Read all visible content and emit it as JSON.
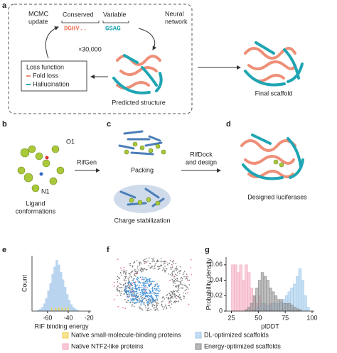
{
  "panel_a": {
    "letter": "a",
    "mcmc_update": [
      "MCMC",
      "update"
    ],
    "conserved": "Conserved",
    "variable": "Variable",
    "seq_conserved": "DGHV..",
    "seq_variable": "GSAG",
    "neural_network": [
      "Neural",
      "network"
    ],
    "iterations": "×30,000",
    "loss_title": "Loss function",
    "loss_items": [
      "Fold loss",
      "Hallucination"
    ],
    "predicted": "Predicted structure",
    "final": "Final scaffold"
  },
  "panel_b": {
    "letter": "b",
    "o1": "O1",
    "n1": "N1",
    "ligand": [
      "Ligand",
      "conformations"
    ],
    "rifgen": "RifGen"
  },
  "panel_c": {
    "letter": "c",
    "packing": "Packing",
    "charge": "Charge stabilization"
  },
  "panel_d": {
    "letter": "d",
    "rifdock": [
      "RifDock",
      "and design"
    ],
    "designed": "Designed luciferases"
  },
  "panel_f": {
    "letter": "f"
  },
  "chart_data": [
    {
      "type": "histogram",
      "letter": "e",
      "xlabel": "RIF binding energy",
      "ylabel": "Count",
      "color": "#b9d4ee",
      "bins": [
        -70,
        -68,
        -66,
        -64,
        -62,
        -60,
        -58,
        -56,
        -54,
        -52,
        -50,
        -48,
        -46,
        -44,
        -42,
        -40,
        -38,
        -36,
        -34,
        -32,
        -30
      ],
      "values": [
        1,
        2,
        4,
        8,
        14,
        22,
        30,
        40,
        48,
        55,
        50,
        42,
        34,
        26,
        18,
        12,
        7,
        4,
        2,
        1
      ],
      "xlim": [
        -75,
        -18
      ],
      "ylim": [
        0,
        60
      ],
      "xticks": [
        -60,
        -40,
        -20
      ],
      "markers": {
        "name": "Native small-molecule-binding proteins",
        "color": "#f2d04a",
        "x": [
          -56,
          -52,
          -49,
          -46,
          -43,
          -40
        ]
      }
    },
    {
      "type": "histogram",
      "letter": "g",
      "xlabel": "plDDT",
      "ylabel": "Probability density",
      "bins": [
        25,
        27.5,
        30,
        32.5,
        35,
        37.5,
        40,
        42.5,
        45,
        47.5,
        50,
        52.5,
        55,
        57.5,
        60,
        62.5,
        65,
        67.5,
        70,
        72.5,
        75,
        77.5,
        80,
        82.5,
        85,
        87.5,
        90,
        92.5,
        95,
        97.5,
        100
      ],
      "xlim": [
        20,
        102
      ],
      "ylim": [
        0,
        0.07
      ],
      "xticks": [
        25,
        50,
        75,
        100
      ],
      "yticks": [
        0,
        0.02,
        0.04,
        0.06
      ],
      "series": [
        {
          "name": "Native NTF2-like proteins",
          "color": "#f4a6bd",
          "values": [
            0.06,
            0.06,
            0.05,
            0.06,
            0.04,
            0.06,
            0.05,
            0.03,
            0.02,
            0.01,
            0.02,
            0,
            0.01,
            0,
            0.01,
            0,
            0,
            0,
            0,
            0,
            0,
            0,
            0,
            0,
            0,
            0,
            0,
            0,
            0,
            0
          ]
        },
        {
          "name": "DL-optimized scaffolds",
          "color": "#9cc7ea",
          "values": [
            0,
            0,
            0,
            0,
            0,
            0,
            0,
            0,
            0.002,
            0.005,
            0.008,
            0.01,
            0.01,
            0.008,
            0.008,
            0.01,
            0.01,
            0.01,
            0.012,
            0.015,
            0.02,
            0.025,
            0.03,
            0.035,
            0.045,
            0.055,
            0.04,
            0.02,
            0.005,
            0
          ]
        },
        {
          "name": "Energy-optimized scaffolds",
          "color": "#8a8a8a",
          "values": [
            0,
            0,
            0,
            0,
            0,
            0.002,
            0.005,
            0.01,
            0.02,
            0.03,
            0.04,
            0.05,
            0.045,
            0.04,
            0.03,
            0.025,
            0.02,
            0.015,
            0.015,
            0.01,
            0.01,
            0.01,
            0.008,
            0.005,
            0.003,
            0.002,
            0,
            0,
            0,
            0
          ]
        }
      ]
    }
  ]
}
